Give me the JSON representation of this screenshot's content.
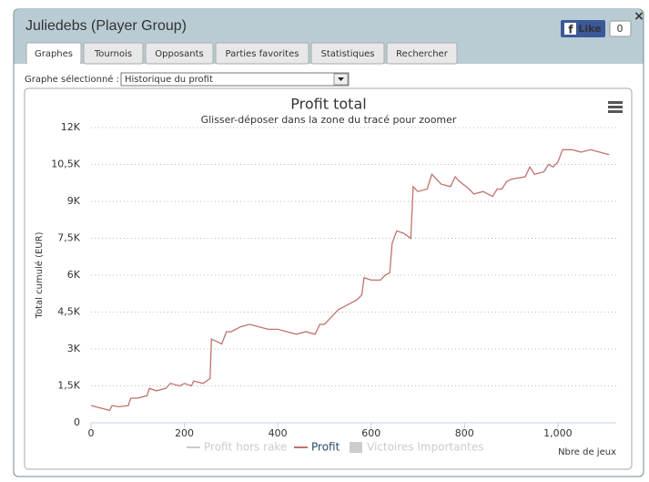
{
  "window": {
    "title": "Juliedebs (Player Group)",
    "like": "Like",
    "like_count": "0",
    "close": "×",
    "tabs": [
      "Graphes",
      "Tournois",
      "Opposants",
      "Parties favorites",
      "Statistiques",
      "Rechercher"
    ],
    "select_label": "Graphe sélectionné :",
    "select_value": "Historique du profit"
  },
  "chart_data": {
    "type": "line",
    "title": "Profit total",
    "subtitle": "Glisser-déposer dans la zone du tracé pour zoomer",
    "x_label": "Nbre de jeux",
    "y_label": "Total cumulé (EUR)",
    "x": [
      0,
      20,
      40,
      45,
      60,
      80,
      85,
      100,
      120,
      125,
      140,
      160,
      170,
      190,
      200,
      215,
      220,
      240,
      255,
      258,
      270,
      280,
      290,
      300,
      320,
      340,
      360,
      380,
      400,
      420,
      440,
      460,
      480,
      490,
      500,
      520,
      530,
      550,
      570,
      580,
      585,
      600,
      620,
      630,
      640,
      645,
      655,
      670,
      685,
      690,
      700,
      720,
      730,
      750,
      770,
      780,
      790,
      810,
      820,
      840,
      860,
      870,
      880,
      890,
      900,
      930,
      940,
      950,
      970,
      980,
      990,
      1000,
      1010,
      1030,
      1050,
      1070,
      1090,
      1110
    ],
    "series": [
      {
        "name": "Profit",
        "color": "#c0726e",
        "values": [
          700,
          600,
          500,
          700,
          650,
          700,
          1000,
          1000,
          1100,
          1400,
          1300,
          1400,
          1600,
          1500,
          1600,
          1500,
          1700,
          1600,
          1800,
          3400,
          3300,
          3200,
          3700,
          3700,
          3900,
          4000,
          3900,
          3800,
          3800,
          3700,
          3600,
          3700,
          3600,
          4000,
          4000,
          4400,
          4600,
          4800,
          5000,
          5200,
          5900,
          5800,
          5800,
          6000,
          6100,
          7300,
          7800,
          7700,
          7500,
          9600,
          9400,
          9500,
          10100,
          9700,
          9600,
          10000,
          9800,
          9500,
          9300,
          9400,
          9200,
          9500,
          9500,
          9800,
          9900,
          10000,
          10400,
          10100,
          10200,
          10500,
          10400,
          10600,
          11100,
          11100,
          11000,
          11100,
          11000,
          10900
        ]
      }
    ],
    "inactive_legend": [
      {
        "name": "Profit hors rake",
        "color": "#cccccc"
      },
      {
        "name": "Victoires Importantes",
        "color": "#cccccc"
      }
    ],
    "xlim": [
      0,
      1125
    ],
    "ylim": [
      0,
      12000
    ],
    "xticks": [
      0,
      200,
      400,
      600,
      800,
      {
        "value": 1000,
        "label": "1,000"
      }
    ],
    "yticks": [
      0,
      {
        "value": 1500,
        "label": "1,5K"
      },
      {
        "value": 3000,
        "label": "3K"
      },
      {
        "value": 4500,
        "label": "4,5K"
      },
      {
        "value": 6000,
        "label": "6K"
      },
      {
        "value": 7500,
        "label": "7,5K"
      },
      {
        "value": 9000,
        "label": "9K"
      },
      {
        "value": 10500,
        "label": "10,5K"
      },
      {
        "value": 12000,
        "label": "12K"
      }
    ],
    "grid": true
  }
}
